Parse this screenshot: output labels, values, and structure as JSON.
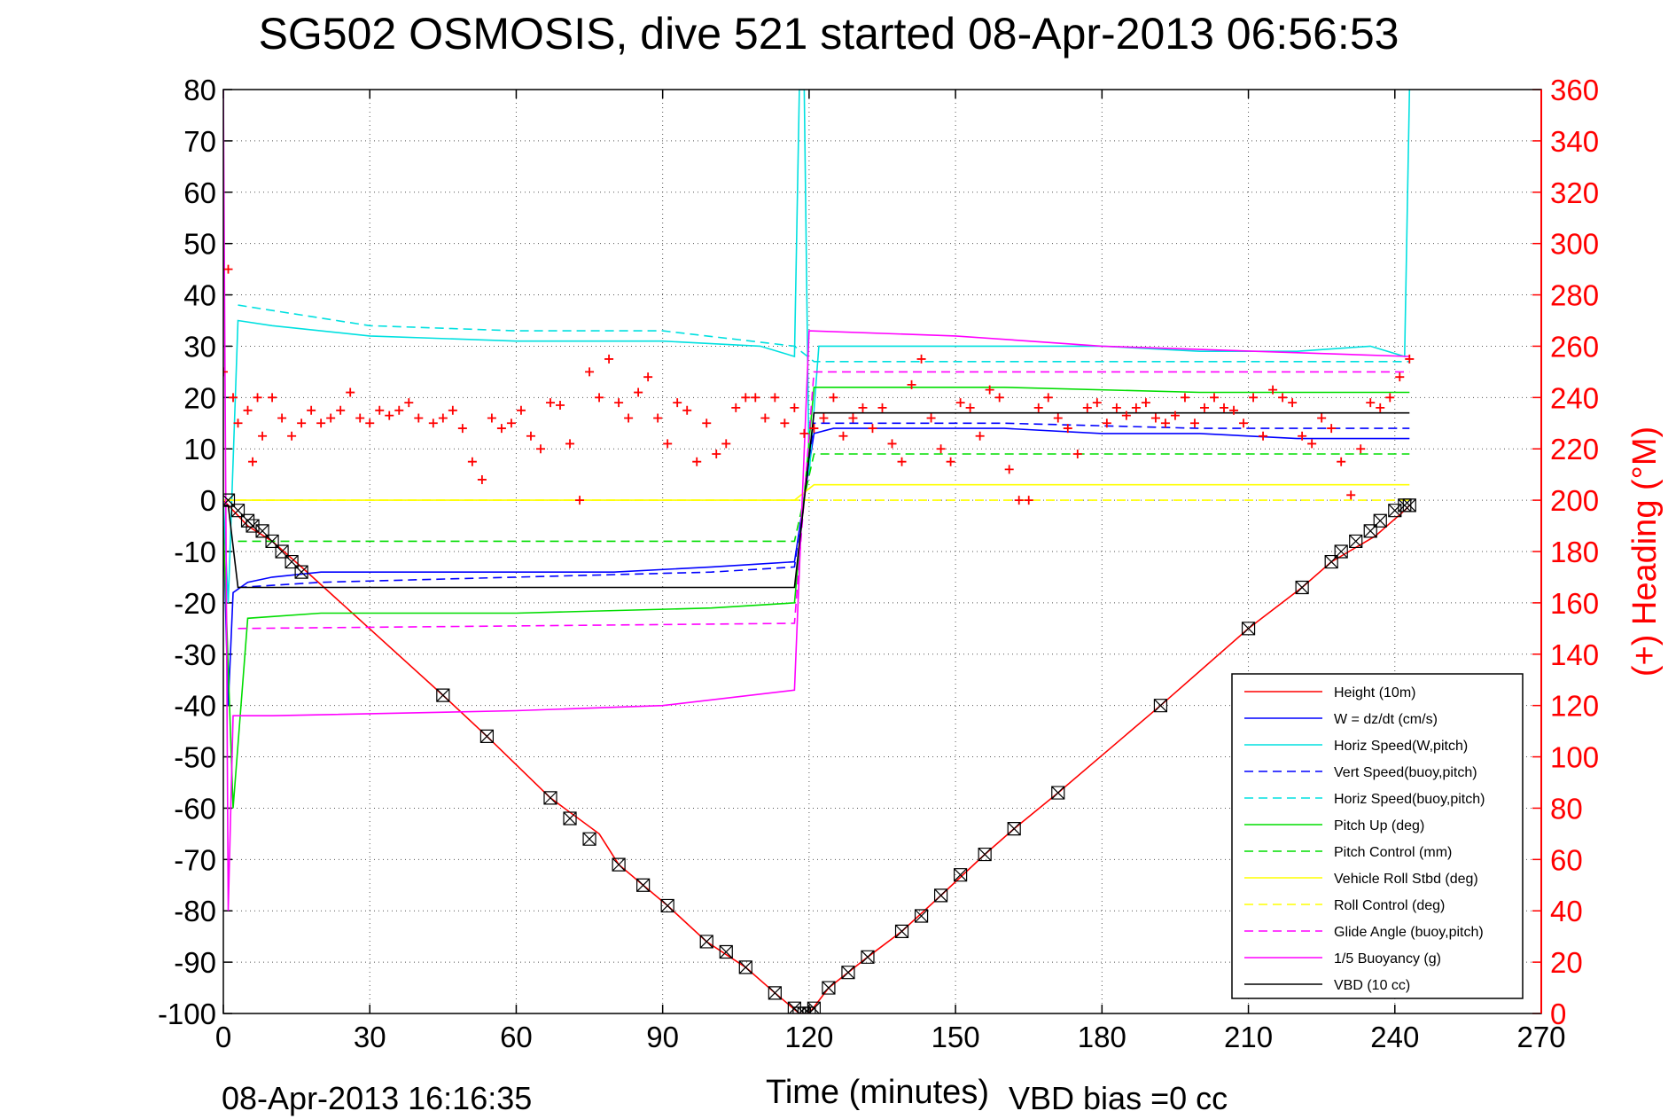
{
  "chart_data": {
    "type": "line",
    "title": "SG502 OSMOSIS, dive 521 started 08-Apr-2013 06:56:53",
    "xlabel": "Time (minutes)",
    "ylabel_right": "(+) Heading (°M)",
    "footer_left": "08-Apr-2013 16:16:35",
    "footer_right": "VBD bias =0 cc",
    "xlim": [
      0,
      270
    ],
    "xticks": [
      0,
      30,
      60,
      90,
      120,
      150,
      180,
      210,
      240,
      270
    ],
    "ylim": [
      -100,
      80
    ],
    "yticks": [
      80,
      70,
      60,
      50,
      40,
      30,
      20,
      10,
      0,
      -10,
      -20,
      -30,
      -40,
      -50,
      -60,
      -70,
      -80,
      -90,
      -100
    ],
    "ylim_right": [
      0,
      360
    ],
    "yticks_right": [
      360,
      340,
      320,
      300,
      280,
      260,
      240,
      220,
      200,
      180,
      160,
      140,
      120,
      100,
      80,
      60,
      40,
      20,
      0
    ],
    "grid": true,
    "legend_position": "bottom-right",
    "series": [
      {
        "name": "Height (10m)",
        "color": "#ff0000",
        "style": "solid",
        "x": [
          0,
          5,
          10,
          16,
          45,
          54,
          67,
          77,
          81,
          91,
          99,
          107,
          113,
          118,
          120,
          124,
          128,
          132,
          139,
          147,
          156,
          162,
          171,
          192,
          210,
          221,
          227,
          236,
          242,
          243
        ],
        "y": [
          0,
          -5,
          -8,
          -13,
          -38,
          -46,
          -58,
          -65,
          -71,
          -79,
          -86,
          -91,
          -96,
          -100,
          -100,
          -95,
          -92,
          -89,
          -84,
          -77,
          -69,
          -64,
          -57,
          -40,
          -25,
          -17,
          -12,
          -7,
          -2,
          -1
        ]
      },
      {
        "name": "W = dz/dt (cm/s)",
        "color": "#0000ff",
        "style": "solid",
        "x": [
          0,
          1,
          2,
          5,
          10,
          20,
          40,
          60,
          80,
          100,
          117,
          121,
          125,
          140,
          160,
          180,
          200,
          220,
          235,
          243
        ],
        "y": [
          -5,
          -40,
          -18,
          -16,
          -15,
          -14,
          -14,
          -14,
          -14,
          -13,
          -12,
          13,
          14,
          14,
          14,
          13,
          13,
          12,
          12,
          12
        ]
      },
      {
        "name": "Horiz Speed(W,pitch)",
        "color": "#00e0e0",
        "style": "solid",
        "x": [
          0,
          1,
          3,
          10,
          30,
          60,
          90,
          110,
          117,
          118,
          119,
          120,
          122,
          140,
          160,
          180,
          200,
          220,
          235,
          242,
          243
        ],
        "y": [
          0,
          -20,
          35,
          34,
          32,
          31,
          31,
          30,
          28,
          80,
          80,
          5,
          30,
          30,
          30,
          30,
          29,
          29,
          30,
          28,
          80
        ]
      },
      {
        "name": "Vert Speed(buoy,pitch)",
        "color": "#0000ff",
        "style": "dashed",
        "x": [
          3,
          20,
          60,
          100,
          117,
          121,
          160,
          200,
          243
        ],
        "y": [
          -17,
          -16,
          -15,
          -14,
          -13,
          15,
          15,
          14,
          14
        ]
      },
      {
        "name": "Horiz Speed(buoy,pitch)",
        "color": "#00e0e0",
        "style": "dashed",
        "x": [
          3,
          30,
          60,
          90,
          117,
          121,
          150,
          180,
          210,
          243
        ],
        "y": [
          38,
          34,
          33,
          33,
          30,
          27,
          27,
          27,
          27,
          27
        ]
      },
      {
        "name": "Pitch Up (deg)",
        "color": "#00dd00",
        "style": "solid",
        "x": [
          0,
          2,
          5,
          20,
          60,
          100,
          117,
          121,
          160,
          200,
          243
        ],
        "y": [
          -5,
          -60,
          -23,
          -22,
          -22,
          -21,
          -20,
          22,
          22,
          21,
          21
        ]
      },
      {
        "name": "Pitch Control (mm)",
        "color": "#00dd00",
        "style": "dashed",
        "x": [
          3,
          117,
          121,
          243
        ],
        "y": [
          -8,
          -8,
          9,
          9
        ]
      },
      {
        "name": "Vehicle Roll Stbd (deg)",
        "color": "#ffff00",
        "style": "solid",
        "x": [
          0,
          10,
          30,
          60,
          90,
          117,
          121,
          150,
          180,
          210,
          243
        ],
        "y": [
          0,
          0,
          0,
          0,
          0,
          0,
          3,
          3,
          3,
          3,
          3
        ]
      },
      {
        "name": "Roll Control (deg)",
        "color": "#ffff00",
        "style": "dashed",
        "x": [
          0,
          117,
          121,
          243
        ],
        "y": [
          0,
          0,
          0,
          0
        ]
      },
      {
        "name": "Glide Angle (buoy,pitch)",
        "color": "#ff00ff",
        "style": "dashed",
        "x": [
          3,
          117,
          121,
          243
        ],
        "y": [
          -25,
          -24,
          25,
          25
        ]
      },
      {
        "name": "1/5 Buoyancy (g)",
        "color": "#ff00ff",
        "style": "solid",
        "x": [
          0,
          1,
          2,
          10,
          60,
          90,
          117,
          120,
          150,
          180,
          243
        ],
        "y": [
          80,
          -80,
          -42,
          -42,
          -41,
          -40,
          -37,
          33,
          32,
          30,
          28
        ]
      },
      {
        "name": "VBD (10 cc)",
        "color": "#000000",
        "style": "solid",
        "x": [
          0,
          1,
          3,
          117,
          121,
          243
        ],
        "y": [
          -1,
          -1,
          -17,
          -17,
          17,
          17
        ]
      }
    ],
    "heading_series": {
      "name": "(+) Heading",
      "color": "#ff0000",
      "marker": "+",
      "axis": "right",
      "x": [
        0,
        1,
        2,
        3,
        5,
        6,
        7,
        8,
        10,
        12,
        14,
        16,
        18,
        20,
        22,
        24,
        26,
        28,
        30,
        32,
        34,
        36,
        38,
        40,
        43,
        45,
        47,
        49,
        51,
        53,
        55,
        57,
        59,
        61,
        63,
        65,
        67,
        69,
        71,
        73,
        75,
        77,
        79,
        81,
        83,
        85,
        87,
        89,
        91,
        93,
        95,
        97,
        99,
        101,
        103,
        105,
        107,
        109,
        111,
        113,
        115,
        117,
        119,
        121,
        123,
        125,
        127,
        129,
        131,
        133,
        135,
        137,
        139,
        141,
        143,
        145,
        147,
        149,
        151,
        153,
        155,
        157,
        159,
        161,
        163,
        165,
        167,
        169,
        171,
        173,
        175,
        177,
        179,
        181,
        183,
        185,
        187,
        189,
        191,
        193,
        195,
        197,
        199,
        201,
        203,
        205,
        207,
        209,
        211,
        213,
        215,
        217,
        219,
        221,
        223,
        225,
        227,
        229,
        231,
        233,
        235,
        237,
        239,
        241,
        243
      ],
      "y": [
        250,
        290,
        240,
        230,
        235,
        215,
        240,
        225,
        240,
        232,
        225,
        230,
        235,
        230,
        232,
        235,
        242,
        232,
        230,
        235,
        233,
        235,
        238,
        232,
        230,
        232,
        235,
        228,
        215,
        208,
        232,
        228,
        230,
        235,
        225,
        220,
        238,
        237,
        222,
        200,
        250,
        240,
        255,
        238,
        232,
        242,
        248,
        232,
        222,
        238,
        235,
        215,
        230,
        218,
        222,
        236,
        240,
        240,
        232,
        240,
        230,
        236,
        226,
        228,
        232,
        240,
        225,
        232,
        236,
        228,
        236,
        222,
        215,
        245,
        255,
        232,
        220,
        215,
        238,
        236,
        225,
        243,
        240,
        212,
        200,
        200,
        236,
        240,
        232,
        228,
        218,
        236,
        238,
        230,
        236,
        233,
        236,
        238,
        232,
        230,
        233,
        240,
        230,
        236,
        240,
        236,
        235,
        230,
        240,
        225,
        243,
        240,
        238,
        225,
        222,
        232,
        228,
        215,
        202,
        220,
        238,
        236,
        240,
        248,
        255
      ]
    },
    "depth_markers": {
      "marker": "square-x",
      "x": [
        1,
        3,
        5,
        6,
        8,
        10,
        12,
        14,
        16,
        45,
        54,
        67,
        71,
        75,
        81,
        86,
        91,
        99,
        103,
        107,
        113,
        117,
        118,
        119,
        120,
        121,
        124,
        128,
        132,
        139,
        143,
        147,
        151,
        156,
        162,
        171,
        192,
        210,
        221,
        227,
        229,
        232,
        235,
        237,
        240,
        242,
        243
      ],
      "y": [
        0,
        -2,
        -4,
        -5,
        -6,
        -8,
        -10,
        -12,
        -14,
        -38,
        -46,
        -58,
        -62,
        -66,
        -71,
        -75,
        -79,
        -86,
        -88,
        -91,
        -96,
        -99,
        -100,
        -100,
        -100,
        -99,
        -95,
        -92,
        -89,
        -84,
        -81,
        -77,
        -73,
        -69,
        -64,
        -57,
        -40,
        -25,
        -17,
        -12,
        -10,
        -8,
        -6,
        -4,
        -2,
        -1,
        -1
      ]
    }
  }
}
